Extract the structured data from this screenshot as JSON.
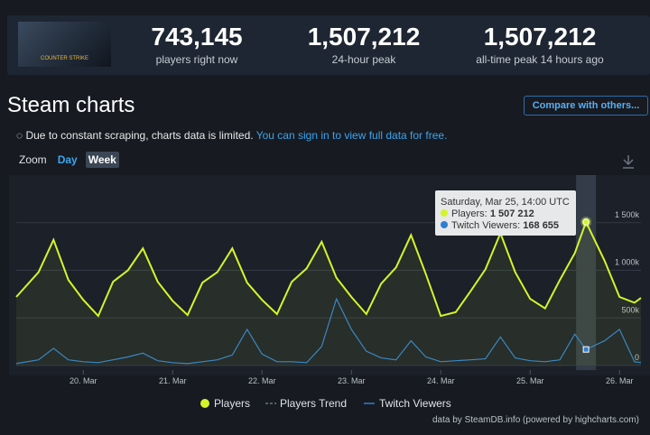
{
  "header": {
    "logo_text": "COUNTER STRIKE",
    "stats": [
      {
        "value": "743,145",
        "label": "players right now"
      },
      {
        "value": "1,507,212",
        "label": "24-hour peak"
      },
      {
        "value": "1,507,212",
        "label": "all-time peak 14 hours ago"
      }
    ]
  },
  "section_title": "Steam charts",
  "compare_button": "Compare with others...",
  "notice": {
    "text": "Due to constant scraping, charts data is limited.",
    "link": "You can sign in to view full data for free."
  },
  "zoom": {
    "label": "Zoom",
    "options": [
      "Day",
      "Week"
    ]
  },
  "credit": "data by SteamDB.info (powered by highcharts.com)",
  "chart_data": {
    "type": "line",
    "x": [
      19.25,
      19.5,
      19.667,
      19.833,
      20.0,
      20.167,
      20.333,
      20.5,
      20.667,
      20.833,
      21.0,
      21.167,
      21.333,
      21.5,
      21.667,
      21.833,
      22.0,
      22.167,
      22.333,
      22.5,
      22.667,
      22.833,
      23.0,
      23.167,
      23.333,
      23.5,
      23.667,
      23.833,
      24.0,
      24.167,
      24.333,
      24.5,
      24.667,
      24.833,
      25.0,
      25.167,
      25.333,
      25.5,
      25.625,
      25.833,
      26.0,
      26.167,
      26.24
    ],
    "series": [
      {
        "name": "Players",
        "color": "#d4f52a",
        "values": [
          720000,
          980000,
          1320000,
          900000,
          690000,
          520000,
          880000,
          1000000,
          1230000,
          880000,
          680000,
          530000,
          870000,
          980000,
          1230000,
          870000,
          690000,
          540000,
          880000,
          1020000,
          1300000,
          920000,
          720000,
          540000,
          860000,
          1030000,
          1370000,
          960000,
          520000,
          560000,
          780000,
          1010000,
          1390000,
          980000,
          700000,
          600000,
          900000,
          1180000,
          1507212,
          1100000,
          720000,
          660000,
          710000
        ]
      },
      {
        "name": "Twitch Viewers",
        "color": "#2f7fd0",
        "values": [
          20000,
          60000,
          180000,
          60000,
          40000,
          30000,
          60000,
          90000,
          130000,
          50000,
          30000,
          20000,
          40000,
          60000,
          110000,
          380000,
          120000,
          40000,
          40000,
          30000,
          200000,
          700000,
          380000,
          150000,
          80000,
          60000,
          260000,
          90000,
          40000,
          50000,
          60000,
          70000,
          300000,
          80000,
          50000,
          40000,
          60000,
          330000,
          168655,
          260000,
          380000,
          40000,
          30000
        ]
      }
    ],
    "trend_legend": "Players Trend",
    "xlim": [
      19.25,
      26.24
    ],
    "xticks": [
      {
        "value": 20,
        "label": "20. Mar"
      },
      {
        "value": 21,
        "label": "21. Mar"
      },
      {
        "value": 22,
        "label": "22. Mar"
      },
      {
        "value": 23,
        "label": "23. Mar"
      },
      {
        "value": 24,
        "label": "24. Mar"
      },
      {
        "value": 25,
        "label": "25. Mar"
      },
      {
        "value": 26,
        "label": "26. Mar"
      }
    ],
    "ylim": [
      0,
      2000000
    ],
    "yticks": [
      0,
      {
        "value": 500000,
        "label": "500k"
      },
      {
        "value": 1000000,
        "label": "1 000k"
      },
      {
        "value": 1500000,
        "label": "1 500k"
      }
    ],
    "grid": true,
    "tooltip": {
      "index": 38,
      "title": "Saturday, Mar 25, 14:00 UTC",
      "players_label": "Players:",
      "players": "1 507 212",
      "twitch_label": "Twitch Viewers:",
      "twitch": "168 655"
    }
  }
}
